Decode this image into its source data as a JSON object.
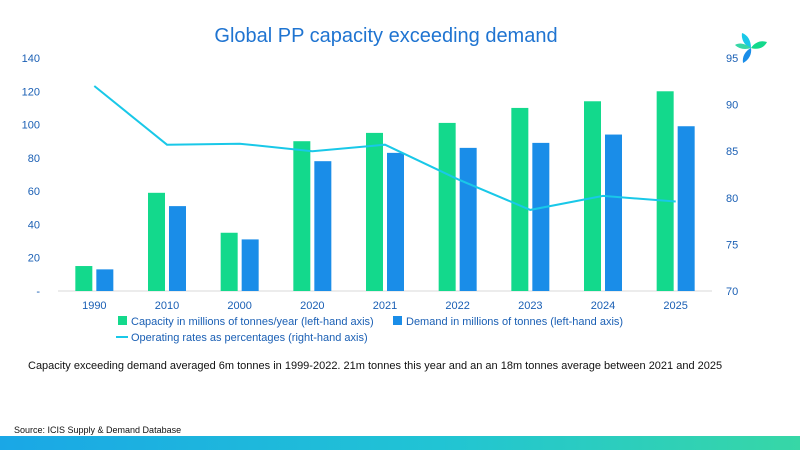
{
  "chart_data": {
    "type": "bar",
    "title": "Global PP capacity exceeding demand",
    "categories": [
      "1990",
      "2010",
      "2000",
      "2020",
      "2021",
      "2022",
      "2023",
      "2024",
      "2025"
    ],
    "series": [
      {
        "name": "Capacity in millions of tonnes/year (left-hand axis)",
        "type": "bar",
        "axis": "left",
        "color": "#13d98c",
        "values": [
          15,
          59,
          35,
          90,
          95,
          101,
          110,
          114,
          120
        ]
      },
      {
        "name": "Demand in millions of tonnes (left-hand axis)",
        "type": "bar",
        "axis": "left",
        "color": "#1a8de8",
        "values": [
          13,
          51,
          31,
          78,
          83,
          86,
          89,
          94,
          99
        ]
      },
      {
        "name": "Operating rates as percentages (right-hand axis)",
        "type": "line",
        "axis": "right",
        "color": "#19c8e8",
        "values": [
          92,
          85.7,
          85.8,
          85,
          85.7,
          82,
          78.7,
          80.2,
          79.6
        ]
      }
    ],
    "y_left": {
      "min": 0,
      "max": 140,
      "ticks": [
        "-",
        "20",
        "40",
        "60",
        "80",
        "100",
        "120",
        "140"
      ]
    },
    "y_right": {
      "min": 70,
      "max": 95,
      "ticks": [
        "70",
        "75",
        "80",
        "85",
        "90",
        "95"
      ]
    },
    "legend_position": "bottom",
    "grid": false
  },
  "caption": "Capacity exceeding demand averaged 6m tonnes in 1999-2022. 21m tonnes this year and an an 18m tonnes average between 2021 and 2025",
  "source": "Source: ICIS Supply & Demand Database",
  "logo": {
    "icon": "icis-leaf-logo-icon"
  },
  "colors": {
    "title": "#1f74d1",
    "axis_text": "#1a5fb4",
    "bottom_bar_start": "#1aa7e6",
    "bottom_bar_end": "#37d7a6"
  }
}
